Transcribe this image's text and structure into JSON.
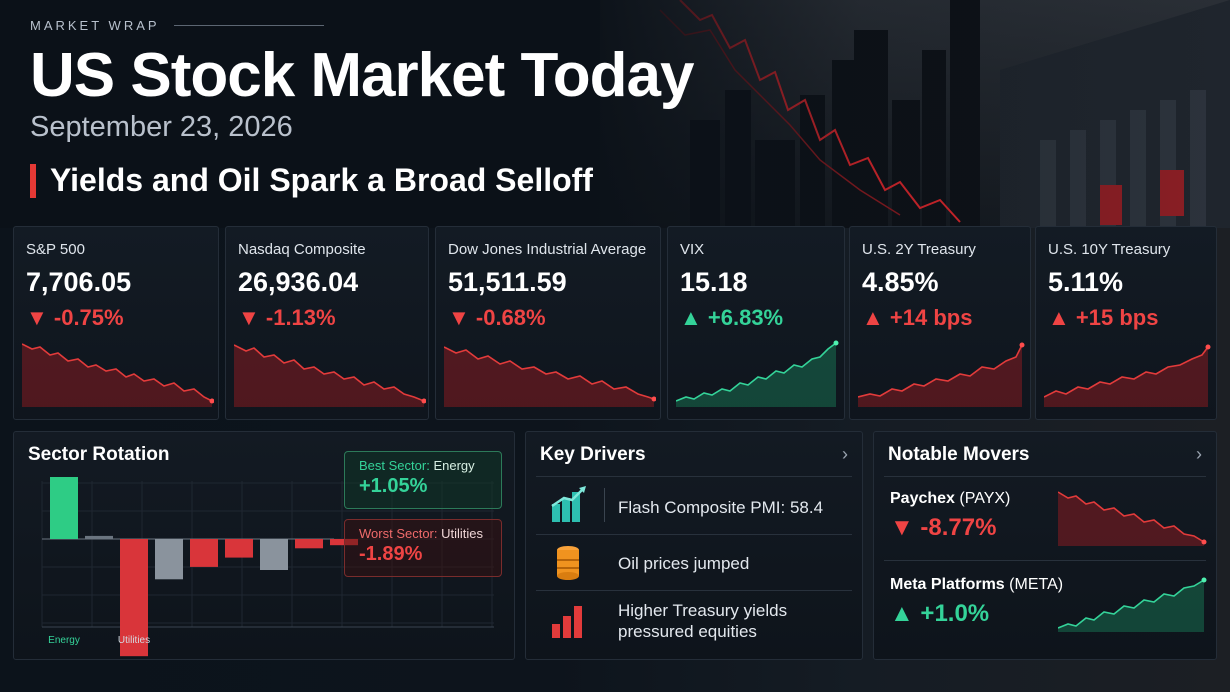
{
  "header": {
    "eyebrow": "MARKET WRAP",
    "title": "US Stock Market Today",
    "date": "September 23, 2026",
    "headline": "Yields and Oil Spark a Broad Selloff"
  },
  "colors": {
    "down": "#ef4444",
    "up": "#34d399",
    "background": "#0b1118"
  },
  "indices": [
    {
      "name": "S&P 500",
      "value": "7,706.05",
      "change": "▼ -0.75%",
      "direction": "down"
    },
    {
      "name": "Nasdaq Composite",
      "value": "26,936.04",
      "change": "▼ -1.13%",
      "direction": "down"
    },
    {
      "name": "Dow Jones Industrial Average",
      "value": "51,511.59",
      "change": "▼ -0.68%",
      "direction": "down"
    },
    {
      "name": "VIX",
      "value": "15.18",
      "change": "▲ +6.83%",
      "direction": "up-green"
    },
    {
      "name": "U.S. 2Y Treasury",
      "value": "4.85%",
      "change": "▲ +14 bps",
      "direction": "up-red"
    },
    {
      "name": "U.S. 10Y Treasury",
      "value": "5.11%",
      "change": "▲ +15 bps",
      "direction": "up-red"
    }
  ],
  "sector_rotation": {
    "title": "Sector Rotation",
    "best_label": "Best Sector:",
    "best_name": "Energy",
    "best_value": "+1.05%",
    "worst_label": "Worst Sector:",
    "worst_name": "Utilities",
    "worst_value": "-1.89%",
    "x_labels": [
      "Energy",
      "Utilities"
    ]
  },
  "chart_data": {
    "type": "bar",
    "title": "Sector Rotation",
    "categories": [
      "Energy",
      "",
      "Utilities",
      "",
      "",
      "",
      "",
      "",
      ""
    ],
    "values": [
      1.05,
      0.05,
      -1.89,
      -0.65,
      -0.45,
      -0.3,
      -0.5,
      -0.15,
      -0.1
    ],
    "tick_labels": [
      "Energy",
      "Utilities"
    ],
    "grid": true
  },
  "key_drivers": {
    "title": "Key Drivers",
    "items": [
      {
        "icon": "building-chart-icon",
        "text": "Flash Composite PMI: 58.4"
      },
      {
        "icon": "oil-barrel-icon",
        "text": "Oil prices jumped"
      },
      {
        "icon": "rising-bars-icon",
        "text": "Higher Treasury yields pressured equities"
      }
    ]
  },
  "notable_movers": {
    "title": "Notable Movers",
    "items": [
      {
        "company": "Paychex",
        "ticker": "(PAYX)",
        "change": "▼ -8.77%",
        "direction": "down"
      },
      {
        "company": "Meta Platforms",
        "ticker": "(META)",
        "change": "▲ +1.0%",
        "direction": "up"
      }
    ]
  }
}
